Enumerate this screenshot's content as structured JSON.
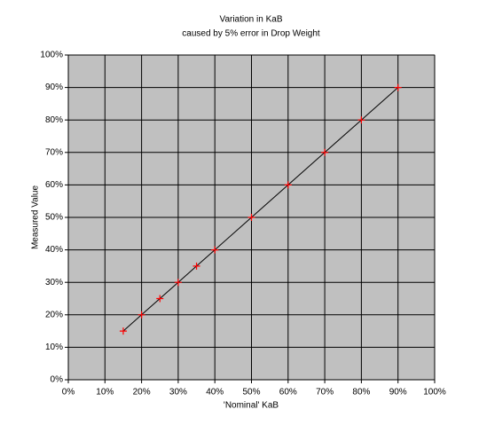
{
  "chart_data": {
    "type": "scatter",
    "title": "Variation in KaB",
    "subtitle": "caused by 5% error in Drop Weight",
    "x_label": "'Nominal' KaB",
    "y_label": "Measured Value",
    "x": [
      15,
      20,
      25,
      30,
      35,
      40,
      50,
      60,
      70,
      80,
      90
    ],
    "series": [
      {
        "color": "#000000",
        "marker_color": "#ff0000",
        "values": [
          15,
          20,
          25,
          30,
          35,
          40,
          50,
          60,
          70,
          80,
          90
        ]
      }
    ],
    "xlim": [
      0,
      100
    ],
    "ylim": [
      0,
      100
    ],
    "xticks": [
      {
        "value": 0,
        "label": "0%"
      },
      {
        "value": 10,
        "label": "10%"
      },
      {
        "value": 20,
        "label": "20%"
      },
      {
        "value": 30,
        "label": "30%"
      },
      {
        "value": 40,
        "label": "40%"
      },
      {
        "value": 50,
        "label": "50%"
      },
      {
        "value": 60,
        "label": "60%"
      },
      {
        "value": 70,
        "label": "70%"
      },
      {
        "value": 80,
        "label": "80%"
      },
      {
        "value": 90,
        "label": "90%"
      },
      {
        "value": 100,
        "label": "100%"
      }
    ],
    "yticks": [
      {
        "value": 0,
        "label": "0%"
      },
      {
        "value": 10,
        "label": "10%"
      },
      {
        "value": 20,
        "label": "20%"
      },
      {
        "value": 30,
        "label": "30%"
      },
      {
        "value": 40,
        "label": "40%"
      },
      {
        "value": 50,
        "label": "50%"
      },
      {
        "value": 60,
        "label": "60%"
      },
      {
        "value": 70,
        "label": "70%"
      },
      {
        "value": 80,
        "label": "80%"
      },
      {
        "value": 90,
        "label": "90%"
      },
      {
        "value": 100,
        "label": "100%"
      }
    ],
    "grid": true,
    "plot_background": "#c0c0c0"
  }
}
